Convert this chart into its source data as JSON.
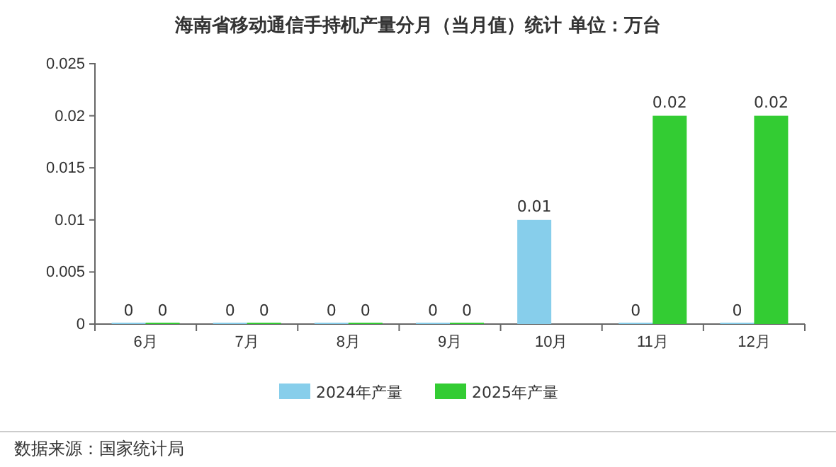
{
  "chart_data": {
    "type": "bar",
    "title": "海南省移动通信手持机产量分月（当月值）统计  单位：万台",
    "categories": [
      "6月",
      "7月",
      "8月",
      "9月",
      "10月",
      "11月",
      "12月"
    ],
    "series": [
      {
        "name": "2024年产量",
        "color": "#87ceeb",
        "values": [
          0,
          0,
          0,
          0,
          0.01,
          0,
          0
        ]
      },
      {
        "name": "2025年产量",
        "color": "#33cc33",
        "values": [
          0,
          0,
          0,
          0,
          null,
          0.02,
          0.02
        ]
      }
    ],
    "ylim": [
      0,
      0.025
    ],
    "yticks": [
      0,
      0.005,
      0.01,
      0.015,
      0.02,
      0.025
    ],
    "data_labels": true,
    "legend": "bottom",
    "grid": false,
    "annotations": [
      "数据来源：国家统计局"
    ]
  }
}
